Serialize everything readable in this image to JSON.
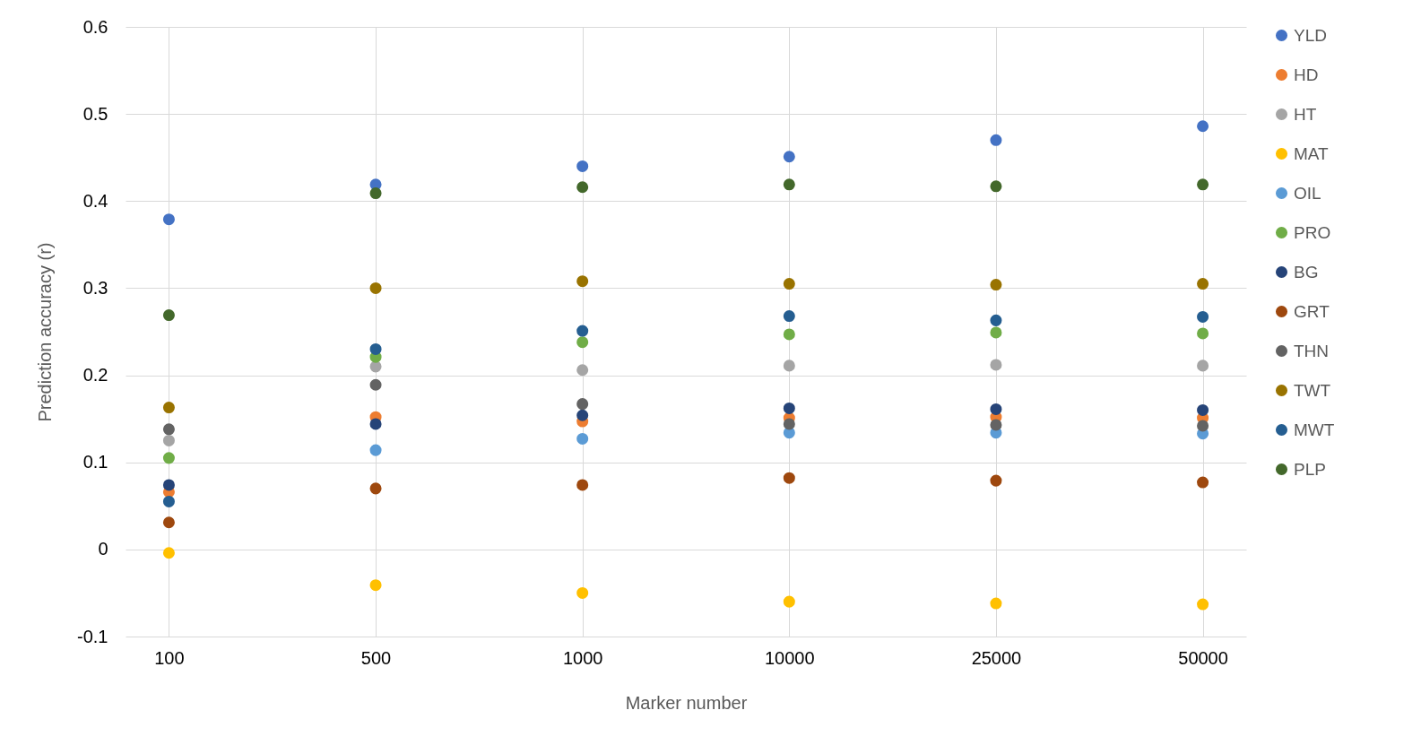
{
  "chart_data": {
    "type": "scatter",
    "xlabel": "Marker number",
    "ylabel": "Prediction accuracy (r)",
    "categories": [
      "100",
      "500",
      "1000",
      "10000",
      "25000",
      "50000"
    ],
    "ylim": [
      -0.1,
      0.6
    ],
    "yticks": [
      -0.1,
      0,
      0.1,
      0.2,
      0.3,
      0.4,
      0.5,
      0.6
    ],
    "grid": true,
    "legend": "right",
    "marker": "circle",
    "series": [
      {
        "name": "YLD",
        "color": "#4472c4",
        "values": [
          0.379,
          0.419,
          0.44,
          0.451,
          0.47,
          0.486
        ]
      },
      {
        "name": "HD",
        "color": "#ed7d31",
        "values": [
          0.066,
          0.152,
          0.147,
          0.151,
          0.152,
          0.151
        ]
      },
      {
        "name": "HT",
        "color": "#a5a5a5",
        "values": [
          0.125,
          0.21,
          0.206,
          0.211,
          0.212,
          0.211
        ]
      },
      {
        "name": "MAT",
        "color": "#ffc000",
        "values": [
          -0.004,
          -0.041,
          -0.05,
          -0.06,
          -0.062,
          -0.063
        ]
      },
      {
        "name": "OIL",
        "color": "#5b9bd5",
        "values": [
          null,
          0.114,
          0.127,
          0.134,
          0.134,
          0.133
        ]
      },
      {
        "name": "PRO",
        "color": "#70ad47",
        "values": [
          0.105,
          0.221,
          0.238,
          0.247,
          0.249,
          0.248
        ]
      },
      {
        "name": "BG",
        "color": "#264478",
        "values": [
          0.074,
          0.144,
          0.154,
          0.162,
          0.161,
          0.16
        ]
      },
      {
        "name": "GRT",
        "color": "#9e480e",
        "values": [
          0.031,
          0.07,
          0.074,
          0.082,
          0.079,
          0.077
        ]
      },
      {
        "name": "THN",
        "color": "#636363",
        "values": [
          0.138,
          0.189,
          0.167,
          0.144,
          0.143,
          0.142
        ]
      },
      {
        "name": "TWT",
        "color": "#997300",
        "values": [
          0.163,
          0.3,
          0.308,
          0.305,
          0.304,
          0.305
        ]
      },
      {
        "name": "MWT",
        "color": "#255e91",
        "values": [
          0.055,
          0.23,
          0.251,
          0.268,
          0.263,
          0.267
        ]
      },
      {
        "name": "PLP",
        "color": "#43682b",
        "values": [
          0.269,
          0.409,
          0.416,
          0.419,
          0.417,
          0.419
        ]
      }
    ]
  }
}
